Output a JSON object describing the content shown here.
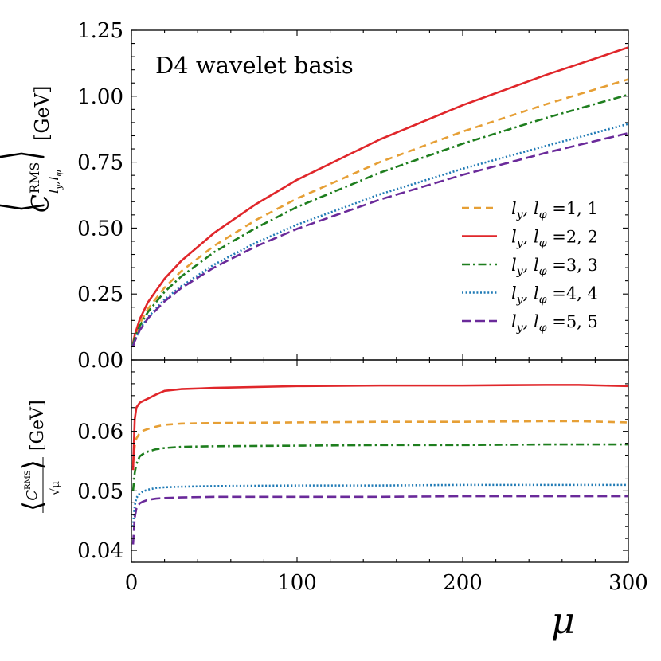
{
  "chart_data": [
    {
      "type": "line",
      "panel": "top",
      "annotation": "D4 wavelet basis",
      "ylabel_main": "C",
      "ylabel_sup": "RMS",
      "ylabel_sub": "l",
      "ylabel_sub2": "y",
      "ylabel_sub3": ",l",
      "ylabel_sub4": "φ",
      "ylabel_unit": "[GeV]",
      "ylim": [
        0.0,
        1.25
      ],
      "xlim": [
        0,
        300
      ],
      "yticks": [
        "0.00",
        "0.25",
        "0.50",
        "0.75",
        "1.00",
        "1.25"
      ],
      "ytick_values": [
        0.0,
        0.25,
        0.5,
        0.75,
        1.0,
        1.25
      ],
      "legend_position": "center-right",
      "legend_prefix": "l",
      "legend_prefix_sub": "y",
      "legend_prefix_mid": ", l",
      "legend_prefix_sub2": "φ",
      "legend_prefix_end": " =",
      "series": [
        {
          "name": "1, 1",
          "color": "#E69F35",
          "dash": "dashed",
          "x": [
            1,
            2,
            5,
            10,
            20,
            30,
            50,
            75,
            100,
            150,
            200,
            250,
            300
          ],
          "values": [
            0.06,
            0.086,
            0.137,
            0.194,
            0.274,
            0.336,
            0.433,
            0.53,
            0.612,
            0.75,
            0.866,
            0.969,
            1.064
          ]
        },
        {
          "name": "2, 2",
          "color": "#E0262A",
          "dash": "solid",
          "x": [
            1,
            2,
            5,
            10,
            20,
            30,
            50,
            75,
            100,
            150,
            200,
            250,
            300
          ],
          "values": [
            0.064,
            0.094,
            0.154,
            0.219,
            0.308,
            0.375,
            0.482,
            0.59,
            0.683,
            0.836,
            0.966,
            1.08,
            1.185
          ]
        },
        {
          "name": "3, 3",
          "color": "#1E7E1E",
          "dash": "dashdot",
          "x": [
            1,
            2,
            5,
            10,
            20,
            30,
            50,
            75,
            100,
            150,
            200,
            250,
            300
          ],
          "values": [
            0.058,
            0.082,
            0.129,
            0.182,
            0.258,
            0.316,
            0.409,
            0.5,
            0.58,
            0.71,
            0.82,
            0.917,
            1.006
          ]
        },
        {
          "name": "4, 4",
          "color": "#1F7AB5",
          "dash": "dotted",
          "x": [
            1,
            2,
            5,
            10,
            20,
            30,
            50,
            75,
            100,
            150,
            200,
            250,
            300
          ],
          "values": [
            0.055,
            0.074,
            0.116,
            0.162,
            0.229,
            0.279,
            0.362,
            0.444,
            0.513,
            0.628,
            0.725,
            0.811,
            0.895
          ]
        },
        {
          "name": "5, 5",
          "color": "#6A2A9A",
          "dash": "longdash",
          "x": [
            1,
            2,
            5,
            10,
            20,
            30,
            50,
            75,
            100,
            150,
            200,
            250,
            300
          ],
          "values": [
            0.052,
            0.071,
            0.112,
            0.158,
            0.222,
            0.272,
            0.351,
            0.43,
            0.497,
            0.608,
            0.702,
            0.785,
            0.86
          ]
        }
      ]
    },
    {
      "type": "line",
      "panel": "bottom",
      "ylabel_unit": "[GeV]",
      "ylabel_den": "√μ",
      "xlabel": "μ",
      "xlim": [
        0,
        300
      ],
      "ylim": [
        0.038,
        0.072
      ],
      "xticks": [
        "0",
        "100",
        "200",
        "300"
      ],
      "xtick_values": [
        0,
        100,
        200,
        300
      ],
      "yticks": [
        "0.04",
        "0.05",
        "0.06"
      ],
      "ytick_values": [
        0.04,
        0.05,
        0.06
      ],
      "series": [
        {
          "name": "1, 1",
          "color": "#E69F35",
          "dash": "dashed",
          "x": [
            1,
            2,
            3,
            5,
            7,
            10,
            15,
            20,
            30,
            50,
            100,
            150,
            200,
            250,
            270,
            300
          ],
          "values": [
            0.0545,
            0.0575,
            0.0588,
            0.0597,
            0.0601,
            0.0604,
            0.0608,
            0.0611,
            0.0613,
            0.0614,
            0.0615,
            0.0616,
            0.0616,
            0.0617,
            0.0617,
            0.0615
          ]
        },
        {
          "name": "2, 2",
          "color": "#E0262A",
          "dash": "solid",
          "x": [
            1,
            2,
            3,
            5,
            7,
            10,
            15,
            20,
            30,
            50,
            100,
            150,
            200,
            250,
            270,
            300
          ],
          "values": [
            0.0535,
            0.062,
            0.064,
            0.0648,
            0.0651,
            0.0655,
            0.0662,
            0.0668,
            0.0671,
            0.0673,
            0.0676,
            0.0677,
            0.0677,
            0.0678,
            0.0678,
            0.0676
          ]
        },
        {
          "name": "3, 3",
          "color": "#1E7E1E",
          "dash": "dashdot",
          "x": [
            1,
            2,
            3,
            5,
            7,
            10,
            15,
            20,
            30,
            50,
            100,
            150,
            200,
            250,
            270,
            300
          ],
          "values": [
            0.05,
            0.053,
            0.0545,
            0.0558,
            0.0562,
            0.0566,
            0.057,
            0.0572,
            0.0574,
            0.0575,
            0.0576,
            0.0577,
            0.0577,
            0.0578,
            0.0578,
            0.0578
          ]
        },
        {
          "name": "4, 4",
          "color": "#1F7AB5",
          "dash": "dotted",
          "x": [
            1,
            2,
            3,
            5,
            7,
            10,
            15,
            20,
            30,
            50,
            100,
            150,
            200,
            250,
            270,
            300
          ],
          "values": [
            0.044,
            0.0475,
            0.0488,
            0.0496,
            0.0499,
            0.0502,
            0.0505,
            0.0506,
            0.0507,
            0.0508,
            0.0509,
            0.0509,
            0.051,
            0.051,
            0.051,
            0.051
          ]
        },
        {
          "name": "5, 5",
          "color": "#6A2A9A",
          "dash": "longdash",
          "x": [
            1,
            2,
            3,
            5,
            7,
            10,
            15,
            20,
            30,
            50,
            100,
            150,
            200,
            250,
            270,
            300
          ],
          "values": [
            0.041,
            0.0455,
            0.047,
            0.0479,
            0.0482,
            0.0485,
            0.0487,
            0.0488,
            0.0489,
            0.049,
            0.049,
            0.049,
            0.0491,
            0.0491,
            0.0491,
            0.0491
          ]
        }
      ]
    }
  ]
}
